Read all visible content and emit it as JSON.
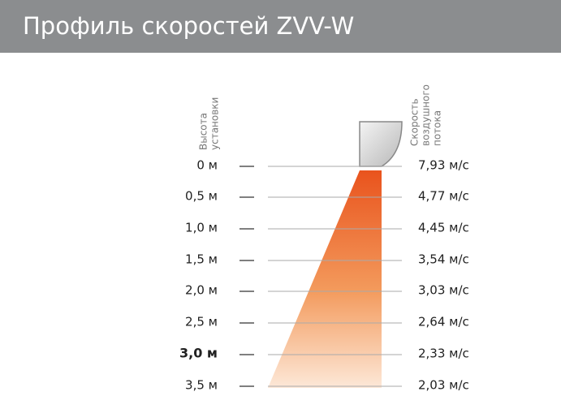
{
  "header": {
    "title": "Профиль скоростей ZVV-W"
  },
  "height_label": [
    "Высота",
    "установки"
  ],
  "speed_label": [
    "Скорость",
    "воздушного",
    "потока"
  ],
  "rows": [
    {
      "height": "0 м",
      "speed": "7,93 м/с"
    },
    {
      "height": "0,5 м",
      "speed": "4,77 м/с"
    },
    {
      "height": "1,0 м",
      "speed": "4,45 м/с"
    },
    {
      "height": "1,5 м",
      "speed": "3,54 м/с"
    },
    {
      "height": "2,0 м",
      "speed": "3,03 м/с"
    },
    {
      "height": "2,5 м",
      "speed": "2,64 м/с"
    },
    {
      "height": "3,0 м",
      "speed": "2,33 м/с"
    },
    {
      "height": "3,5 м",
      "speed": "2,03 м/с"
    }
  ]
}
